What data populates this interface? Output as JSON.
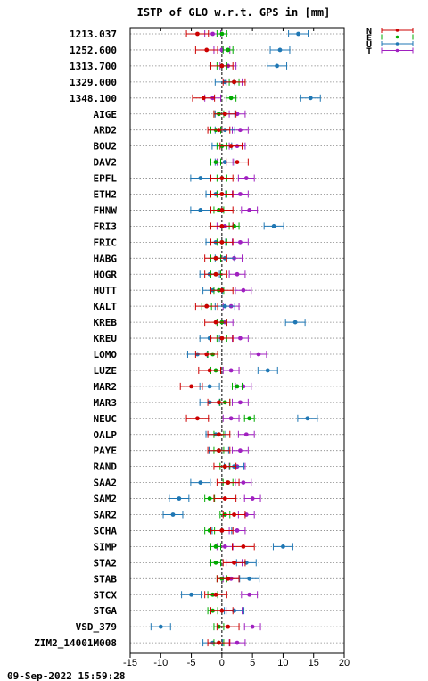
{
  "chart_data": {
    "type": "scatter",
    "title": "ISTP of GLO w.r.t. GPS in [mm]",
    "xlim": [
      -15,
      20
    ],
    "xticks": [
      -15,
      -10,
      -5,
      0,
      5,
      10,
      15,
      20
    ],
    "grid": "horizontal dotted",
    "legend_position": "top-right",
    "timestamp": "09-Sep-2022 15:59:28",
    "series": [
      {
        "name": "N",
        "color": "#cc0000"
      },
      {
        "name": "E",
        "color": "#00aa00"
      },
      {
        "name": "U",
        "color": "#1f77b4"
      },
      {
        "name": "T",
        "color": "#a020c0"
      }
    ],
    "rows": [
      {
        "label": "1213.037",
        "N": -4.0,
        "E": 0.0,
        "U": 12.5,
        "T": -1.5
      },
      {
        "label": "1252.600",
        "N": -2.5,
        "E": 1.0,
        "U": 9.5,
        "T": 0.0
      },
      {
        "label": "1313.700",
        "N": 0.0,
        "E": 0.0,
        "U": 9.0,
        "T": 1.0
      },
      {
        "label": "1329.000",
        "N": 2.0,
        "E": 2.0,
        "U": 0.5,
        "T": 2.0
      },
      {
        "label": "1348.100",
        "N": -3.0,
        "E": 1.5,
        "U": 14.5,
        "T": -1.5
      },
      {
        "label": "AIGE",
        "N": 0.5,
        "E": -0.5,
        "U": 0.5,
        "T": 2.5
      },
      {
        "label": "ARD2",
        "N": -0.5,
        "E": -1.0,
        "U": 0.5,
        "T": 3.0
      },
      {
        "label": "BOU2",
        "N": 1.5,
        "E": 0.0,
        "U": 0.0,
        "T": 2.5
      },
      {
        "label": "DAV2",
        "N": 2.5,
        "E": -1.0,
        "U": 0.5,
        "T": 0.5
      },
      {
        "label": "EPFL",
        "N": 0.0,
        "E": 0.0,
        "U": -3.5,
        "T": 4.0
      },
      {
        "label": "ETH2",
        "N": 0.0,
        "E": 0.0,
        "U": -1.0,
        "T": 3.0
      },
      {
        "label": "FHNW",
        "N": 0.0,
        "E": -0.5,
        "U": -3.5,
        "T": 4.5
      },
      {
        "label": "FRI3",
        "N": 0.0,
        "E": 2.0,
        "U": 8.5,
        "T": 0.5
      },
      {
        "label": "FRIC",
        "N": 0.0,
        "E": 0.0,
        "U": -1.0,
        "T": 3.0
      },
      {
        "label": "HABG",
        "N": -1.0,
        "E": -1.0,
        "U": 0.5,
        "T": 2.0
      },
      {
        "label": "HOGR",
        "N": -1.0,
        "E": -1.0,
        "U": -2.0,
        "T": 2.5
      },
      {
        "label": "HUTT",
        "N": 0.0,
        "E": -0.5,
        "U": -1.5,
        "T": 3.5
      },
      {
        "label": "KALT",
        "N": -2.5,
        "E": -2.5,
        "U": 0.5,
        "T": 1.5
      },
      {
        "label": "KREB",
        "N": -1.0,
        "E": 0.0,
        "U": 12.0,
        "T": 0.5
      },
      {
        "label": "KREU",
        "N": 0.0,
        "E": 0.0,
        "U": -2.0,
        "T": 3.0
      },
      {
        "label": "LOMO",
        "N": -2.5,
        "E": -1.5,
        "U": -4.0,
        "T": 6.0
      },
      {
        "label": "LUZE",
        "N": -2.0,
        "E": -1.0,
        "U": 7.5,
        "T": 1.5
      },
      {
        "label": "MAR2",
        "N": -5.0,
        "E": 2.5,
        "U": -2.0,
        "T": 3.5
      },
      {
        "label": "MAR3",
        "N": -0.5,
        "E": 0.5,
        "U": -2.0,
        "T": 3.0
      },
      {
        "label": "NEUC",
        "N": -4.0,
        "E": 4.5,
        "U": 14.0,
        "T": 1.5
      },
      {
        "label": "OALP",
        "N": -0.5,
        "E": -0.5,
        "U": -1.0,
        "T": 4.0
      },
      {
        "label": "PAYE",
        "N": -0.5,
        "E": -0.5,
        "U": -0.5,
        "T": 3.0
      },
      {
        "label": "RAND",
        "N": 0.5,
        "E": 0.5,
        "U": 2.0,
        "T": 2.5
      },
      {
        "label": "SAA2",
        "N": 1.0,
        "E": 1.0,
        "U": -3.5,
        "T": 3.5
      },
      {
        "label": "SAM2",
        "N": 0.5,
        "E": -2.0,
        "U": -7.0,
        "T": 5.0
      },
      {
        "label": "SAR2",
        "N": 2.0,
        "E": 0.5,
        "U": -8.0,
        "T": 4.0
      },
      {
        "label": "SCHA",
        "N": 0.0,
        "E": -2.0,
        "U": 0.0,
        "T": 2.5
      },
      {
        "label": "SIMP",
        "N": 3.5,
        "E": -1.0,
        "U": 10.0,
        "T": 0.5
      },
      {
        "label": "STA2",
        "N": 2.0,
        "E": -1.0,
        "U": 4.0,
        "T": 2.0
      },
      {
        "label": "STAB",
        "N": 1.0,
        "E": 0.0,
        "U": 4.5,
        "T": 1.5
      },
      {
        "label": "STCX",
        "N": -1.0,
        "E": -1.5,
        "U": -5.0,
        "T": 4.5
      },
      {
        "label": "STGA",
        "N": 0.0,
        "E": -1.5,
        "U": 2.0,
        "T": 2.0
      },
      {
        "label": "VSD_379",
        "N": 1.0,
        "E": -0.5,
        "U": -10.0,
        "T": 5.0
      },
      {
        "label": "ZIM2_14001M008",
        "N": -0.5,
        "E": -0.5,
        "U": -1.5,
        "T": 2.5
      }
    ]
  }
}
